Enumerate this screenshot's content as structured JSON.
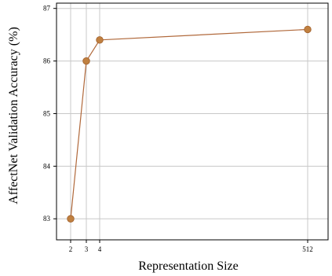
{
  "chart_data": {
    "type": "line",
    "title": "",
    "xlabel": "Representation Size",
    "ylabel": "AffectNet Validation Accuracy (%)",
    "x": [
      2,
      3,
      4,
      512
    ],
    "x_tick_labels": [
      "2",
      "3",
      "4",
      "512"
    ],
    "y_ticks": [
      83,
      84,
      85,
      86,
      87
    ],
    "y_tick_labels": [
      "83",
      "84",
      "85",
      "86",
      "87"
    ],
    "ylim": [
      82.6,
      87.1
    ],
    "grid": true,
    "legend": "none",
    "series": [
      {
        "values": [
          83.0,
          86.0,
          86.4,
          86.6
        ]
      }
    ],
    "colors": {
      "line": "#b0683a",
      "marker": "#c08040",
      "grid": "#c8c8c8",
      "axes": "#000000"
    }
  }
}
